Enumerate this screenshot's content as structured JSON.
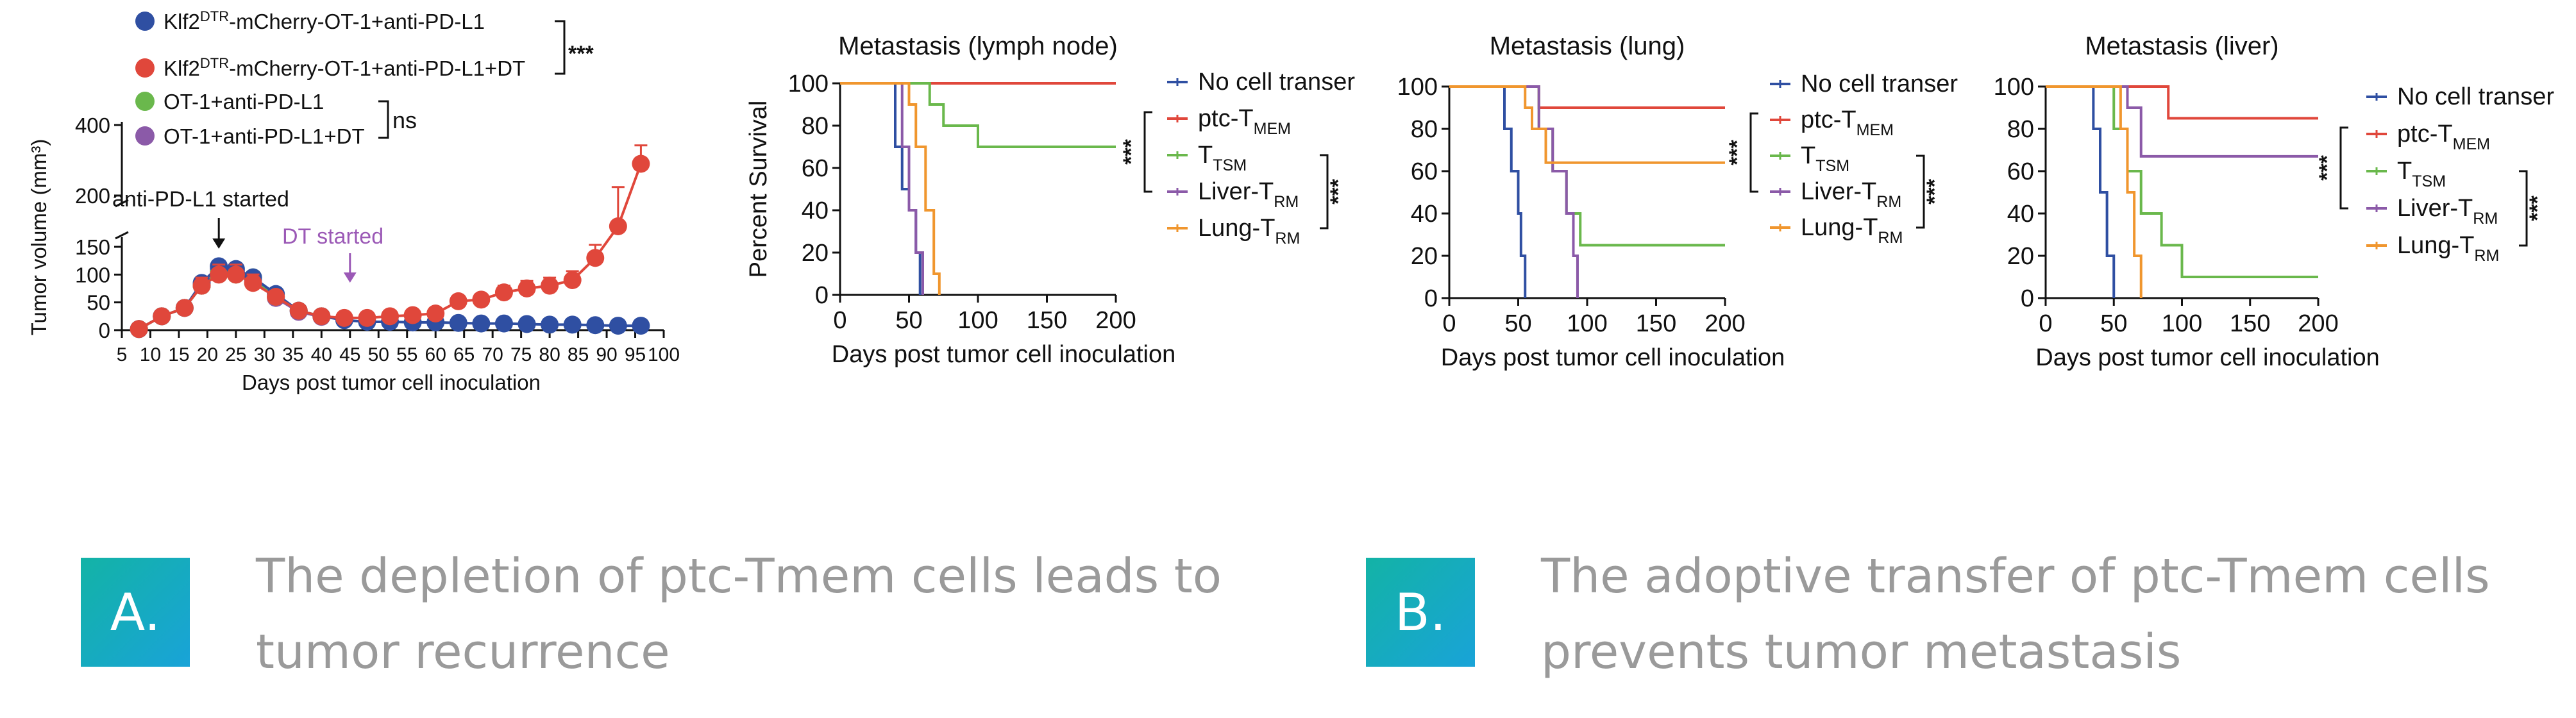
{
  "panel_a": {
    "legend": [
      {
        "label": "Klf2DTR-mCherry-OT-1+anti-PD-L1",
        "color": "#2f4fa2"
      },
      {
        "label": "Klf2DTR-mCherry-OT-1+anti-PD-L1+DT",
        "color": "#e0473b"
      },
      {
        "label": "OT-1+anti-PD-L1",
        "color": "#6ab84c"
      },
      {
        "label": "OT-1+anti-PD-L1+DT",
        "color": "#8b5aa8"
      }
    ],
    "sig_top": "***",
    "sig_bottom": "ns",
    "annotation_pdl1": "anti-PD-L1 started",
    "annotation_dt": "DT started"
  },
  "options": {
    "a_letter": "A.",
    "a_line1": "The depletion of ptc-Tmem cells leads to",
    "a_line2": "tumor recurrence",
    "b_letter": "B.",
    "b_line1": "The adoptive transfer of ptc-Tmem cells",
    "b_line2": "prevents tumor metastasis"
  },
  "colors": {
    "blue": "#2f4fa2",
    "red": "#e0473b",
    "green": "#6ab84c",
    "purple": "#8b5aa8",
    "orange": "#f0962e",
    "accent": "#19a3d8"
  },
  "chart_data": [
    {
      "type": "line",
      "ylabel": "Tumor volume (mm³)",
      "xlabel": "Days post tumor cell inoculation",
      "xticks": [
        5,
        10,
        15,
        20,
        25,
        30,
        35,
        40,
        45,
        50,
        55,
        60,
        65,
        70,
        75,
        80,
        85,
        90,
        95,
        100
      ],
      "xlim": [
        5,
        100
      ],
      "y_broken_axis": true,
      "yticks_lower": [
        0,
        50,
        100,
        150
      ],
      "yticks_upper": [
        200,
        400
      ],
      "series": [
        {
          "name": "Klf2DTR-mCherry-OT-1+anti-PD-L1",
          "color": "#2f4fa2",
          "x": [
            8,
            12,
            16,
            19,
            22,
            25,
            28,
            32,
            36,
            40,
            44,
            48,
            52,
            56,
            60,
            64,
            68,
            72,
            76,
            80,
            84,
            88,
            92,
            96
          ],
          "y": [
            2,
            25,
            40,
            85,
            115,
            110,
            95,
            65,
            35,
            25,
            18,
            15,
            15,
            14,
            14,
            13,
            12,
            12,
            11,
            10,
            10,
            9,
            8,
            8
          ]
        },
        {
          "name": "Klf2DTR-mCherry-OT-1+anti-PD-L1+DT",
          "color": "#e0473b",
          "x": [
            8,
            12,
            16,
            19,
            22,
            25,
            28,
            32,
            36,
            40,
            44,
            48,
            52,
            56,
            60,
            64,
            68,
            72,
            76,
            80,
            84,
            88,
            92,
            96
          ],
          "y": [
            2,
            25,
            40,
            80,
            100,
            100,
            85,
            60,
            35,
            25,
            22,
            22,
            25,
            27,
            30,
            52,
            55,
            68,
            75,
            80,
            90,
            130,
            190,
            290
          ]
        },
        {
          "name": "OT-1+anti-PD-L1",
          "color": "#6ab84c",
          "x": [
            8,
            12,
            16,
            19,
            22,
            25,
            28,
            32,
            36,
            40
          ],
          "y": [
            2,
            25,
            40,
            80,
            105,
            100,
            95,
            60,
            35,
            25
          ]
        },
        {
          "name": "OT-1+anti-PD-L1+DT",
          "color": "#8b5aa8",
          "x": [
            8,
            12,
            16,
            19,
            22,
            25,
            28,
            32,
            36,
            40
          ],
          "y": [
            2,
            25,
            40,
            80,
            110,
            105,
            90,
            58,
            33,
            24
          ]
        }
      ]
    },
    {
      "type": "line",
      "title": "Metastasis (lymph node)",
      "ylabel": "Percent Survival",
      "xlabel": "Days post tumor cell inoculation",
      "xlim": [
        0,
        200
      ],
      "ylim": [
        0,
        100
      ],
      "xticks": [
        0,
        50,
        100,
        150,
        200
      ],
      "yticks": [
        0,
        20,
        40,
        60,
        80,
        100
      ],
      "series": [
        {
          "name": "No cell transer",
          "color": "#2f4fa2",
          "x": [
            0,
            35,
            40,
            45,
            50,
            55,
            58
          ],
          "y": [
            100,
            100,
            70,
            50,
            40,
            20,
            0
          ]
        },
        {
          "name": "ptc-TMEM",
          "color": "#e0473b",
          "x": [
            0,
            200
          ],
          "y": [
            100,
            100
          ]
        },
        {
          "name": "TTSM",
          "color": "#6ab84c",
          "x": [
            0,
            60,
            65,
            75,
            100,
            200
          ],
          "y": [
            100,
            100,
            90,
            80,
            70,
            70
          ]
        },
        {
          "name": "Liver-TRM",
          "color": "#8b5aa8",
          "x": [
            0,
            38,
            45,
            50,
            55,
            60
          ],
          "y": [
            100,
            100,
            70,
            40,
            20,
            0
          ]
        },
        {
          "name": "Lung-TRM",
          "color": "#f0962e",
          "x": [
            0,
            45,
            50,
            55,
            62,
            68,
            72
          ],
          "y": [
            100,
            100,
            90,
            70,
            40,
            10,
            0
          ]
        }
      ]
    },
    {
      "type": "line",
      "title": "Metastasis (lung)",
      "xlabel": "Days post tumor cell inoculation",
      "xlim": [
        0,
        200
      ],
      "ylim": [
        0,
        100
      ],
      "xticks": [
        0,
        50,
        100,
        150,
        200
      ],
      "yticks": [
        0,
        20,
        40,
        60,
        80,
        100
      ],
      "series": [
        {
          "name": "No cell transer",
          "color": "#2f4fa2",
          "x": [
            0,
            35,
            40,
            45,
            50,
            52,
            55
          ],
          "y": [
            100,
            100,
            80,
            60,
            40,
            20,
            0
          ]
        },
        {
          "name": "ptc-TMEM",
          "color": "#e0473b",
          "x": [
            0,
            60,
            65,
            200
          ],
          "y": [
            100,
            100,
            90,
            90
          ]
        },
        {
          "name": "TTSM",
          "color": "#6ab84c",
          "x": [
            0,
            55,
            65,
            75,
            85,
            95,
            200
          ],
          "y": [
            100,
            100,
            80,
            60,
            40,
            25,
            25
          ]
        },
        {
          "name": "Liver-TRM",
          "color": "#8b5aa8",
          "x": [
            0,
            55,
            65,
            75,
            85,
            90,
            93
          ],
          "y": [
            100,
            100,
            80,
            60,
            40,
            20,
            0
          ]
        },
        {
          "name": "Lung-TRM",
          "color": "#f0962e",
          "x": [
            0,
            45,
            55,
            60,
            70,
            200
          ],
          "y": [
            100,
            100,
            90,
            80,
            64,
            64
          ]
        }
      ]
    },
    {
      "type": "line",
      "title": "Metastasis (liver)",
      "xlabel": "Days post tumor cell inoculation",
      "xlim": [
        0,
        200
      ],
      "ylim": [
        0,
        100
      ],
      "xticks": [
        0,
        50,
        100,
        150,
        200
      ],
      "yticks": [
        0,
        20,
        40,
        60,
        80,
        100
      ],
      "series": [
        {
          "name": "No cell transer",
          "color": "#2f4fa2",
          "x": [
            0,
            30,
            35,
            40,
            45,
            50
          ],
          "y": [
            100,
            100,
            80,
            50,
            20,
            0
          ]
        },
        {
          "name": "ptc-TMEM",
          "color": "#e0473b",
          "x": [
            0,
            80,
            90,
            200
          ],
          "y": [
            100,
            100,
            85,
            85
          ]
        },
        {
          "name": "TTSM",
          "color": "#6ab84c",
          "x": [
            0,
            40,
            50,
            60,
            70,
            85,
            100,
            200
          ],
          "y": [
            100,
            100,
            80,
            60,
            40,
            25,
            10,
            10
          ]
        },
        {
          "name": "Liver-TRM",
          "color": "#8b5aa8",
          "x": [
            0,
            50,
            60,
            70,
            200
          ],
          "y": [
            100,
            100,
            90,
            67,
            67
          ]
        },
        {
          "name": "Lung-TRM",
          "color": "#f0962e",
          "x": [
            0,
            45,
            55,
            60,
            65,
            70
          ],
          "y": [
            100,
            100,
            80,
            50,
            20,
            0
          ]
        }
      ]
    }
  ]
}
